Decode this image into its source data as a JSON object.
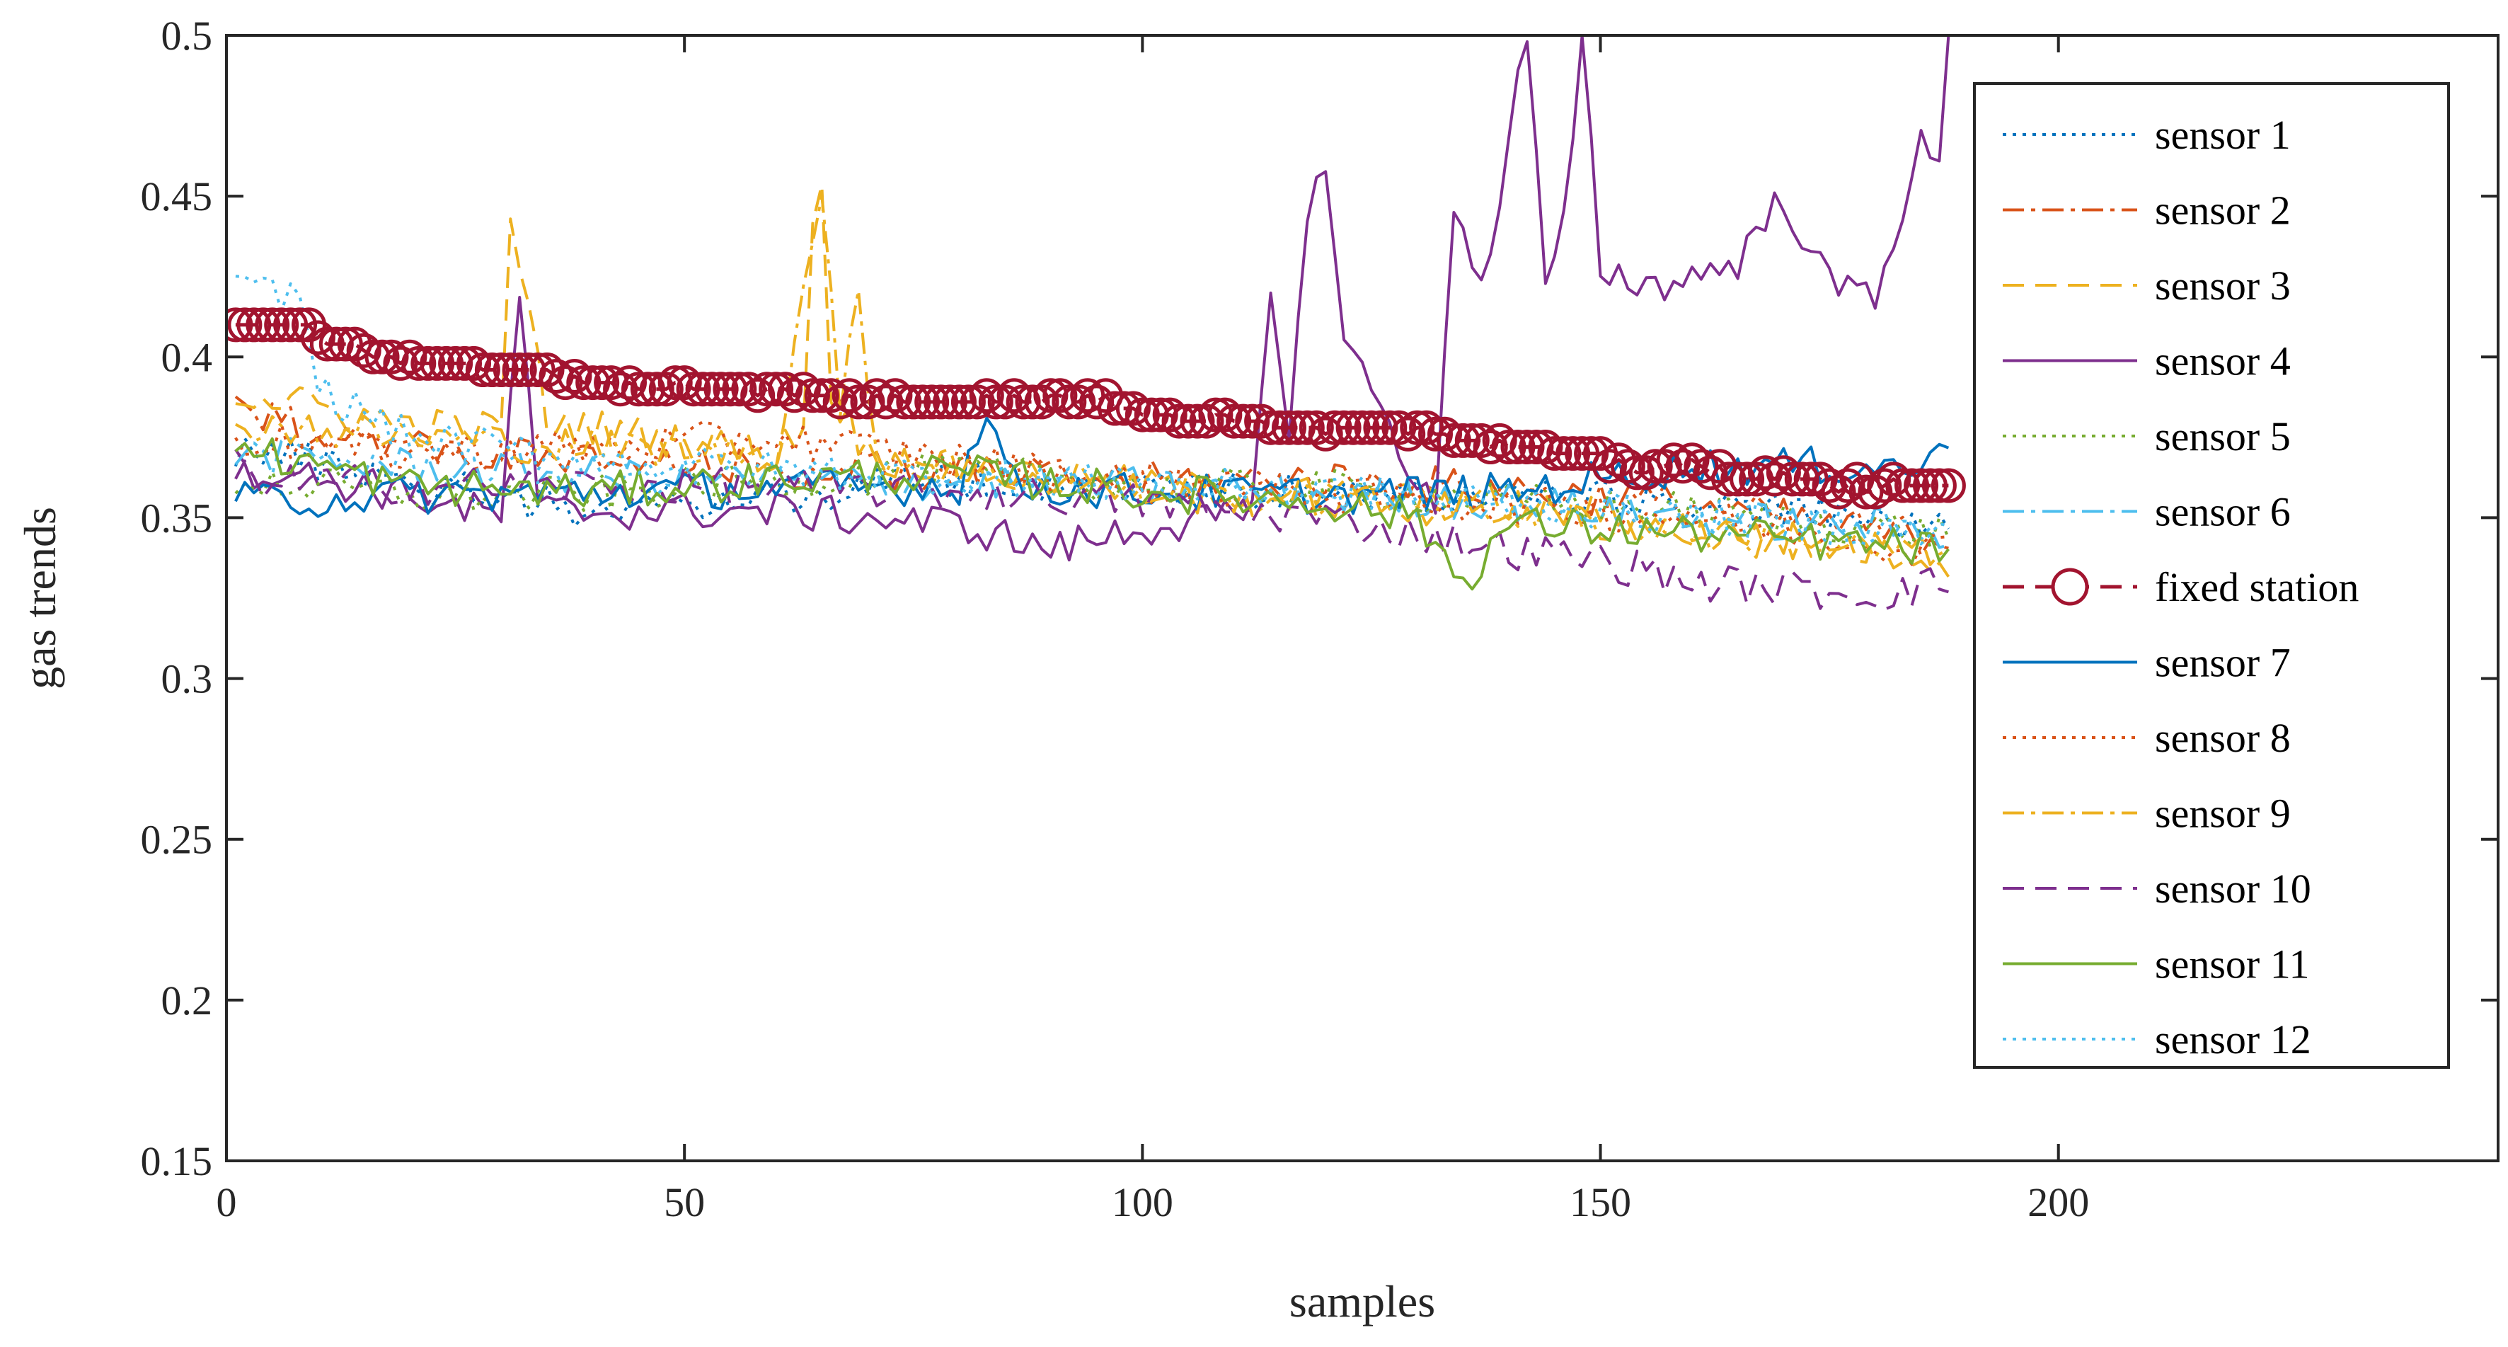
{
  "chart_data": {
    "type": "line",
    "title": "",
    "xlabel": "samples",
    "ylabel": "gas trends",
    "xlim": [
      0,
      248
    ],
    "ylim": [
      0.15,
      0.5
    ],
    "xticks": [
      0,
      50,
      100,
      150,
      200
    ],
    "xtick_labels": [
      "0",
      "50",
      "100",
      "150",
      "200"
    ],
    "yticks": [
      0.15,
      0.2,
      0.25,
      0.3,
      0.35,
      0.4,
      0.45,
      0.5
    ],
    "ytick_labels": [
      "0.15",
      "0.2",
      "0.25",
      "0.3",
      "0.35",
      "0.4",
      "0.45",
      "0.5"
    ],
    "grid": false,
    "legend_position": "top-right",
    "n_samples": 188,
    "series": [
      {
        "name": "sensor 1",
        "color": "#0072BD",
        "dash": "dotted",
        "keypoints": [
          [
            1,
            0.372
          ],
          [
            20,
            0.362
          ],
          [
            40,
            0.352
          ],
          [
            60,
            0.357
          ],
          [
            80,
            0.362
          ],
          [
            100,
            0.36
          ],
          [
            120,
            0.357
          ],
          [
            140,
            0.357
          ],
          [
            160,
            0.354
          ],
          [
            188,
            0.347
          ]
        ]
      },
      {
        "name": "sensor 2",
        "color": "#D95319",
        "dash": "dashdot",
        "keypoints": [
          [
            1,
            0.382
          ],
          [
            20,
            0.372
          ],
          [
            40,
            0.367
          ],
          [
            60,
            0.365
          ],
          [
            80,
            0.364
          ],
          [
            100,
            0.362
          ],
          [
            120,
            0.362
          ],
          [
            140,
            0.359
          ],
          [
            160,
            0.354
          ],
          [
            188,
            0.343
          ]
        ]
      },
      {
        "name": "sensor 3",
        "color": "#EDB120",
        "dash": "dashed",
        "keypoints": [
          [
            1,
            0.389
          ],
          [
            20,
            0.379
          ],
          [
            30,
            0.377
          ],
          [
            31,
            0.443
          ],
          [
            32,
            0.43
          ],
          [
            35,
            0.38
          ],
          [
            50,
            0.374
          ],
          [
            60,
            0.369
          ],
          [
            63,
            0.38
          ],
          [
            64,
            0.442
          ],
          [
            65,
            0.452
          ],
          [
            66,
            0.39
          ],
          [
            70,
            0.37
          ],
          [
            80,
            0.365
          ],
          [
            100,
            0.36
          ],
          [
            120,
            0.357
          ],
          [
            140,
            0.354
          ],
          [
            160,
            0.347
          ],
          [
            188,
            0.337
          ]
        ]
      },
      {
        "name": "sensor 4",
        "color": "#7E2F8E",
        "dash": "solid",
        "keypoints": [
          [
            1,
            0.366
          ],
          [
            10,
            0.362
          ],
          [
            20,
            0.357
          ],
          [
            30,
            0.35
          ],
          [
            32,
            0.42
          ],
          [
            34,
            0.352
          ],
          [
            60,
            0.352
          ],
          [
            80,
            0.348
          ],
          [
            90,
            0.34
          ],
          [
            100,
            0.347
          ],
          [
            112,
            0.35
          ],
          [
            114,
            0.42
          ],
          [
            116,
            0.38
          ],
          [
            118,
            0.44
          ],
          [
            120,
            0.463
          ],
          [
            122,
            0.405
          ],
          [
            125,
            0.39
          ],
          [
            132,
            0.35
          ],
          [
            134,
            0.45
          ],
          [
            136,
            0.43
          ],
          [
            138,
            0.428
          ],
          [
            140,
            0.47
          ],
          [
            142,
            0.5
          ],
          [
            144,
            0.42
          ],
          [
            146,
            0.44
          ],
          [
            148,
            0.5
          ],
          [
            150,
            0.428
          ],
          [
            155,
            0.422
          ],
          [
            160,
            0.425
          ],
          [
            165,
            0.43
          ],
          [
            170,
            0.45
          ],
          [
            175,
            0.422
          ],
          [
            180,
            0.42
          ],
          [
            185,
            0.465
          ],
          [
            187,
            0.46
          ],
          [
            188,
            0.5
          ]
        ]
      },
      {
        "name": "sensor 5",
        "color": "#77AC30",
        "dash": "dotted",
        "keypoints": [
          [
            1,
            0.362
          ],
          [
            20,
            0.357
          ],
          [
            40,
            0.357
          ],
          [
            60,
            0.362
          ],
          [
            80,
            0.364
          ],
          [
            100,
            0.36
          ],
          [
            120,
            0.359
          ],
          [
            140,
            0.355
          ],
          [
            160,
            0.352
          ],
          [
            188,
            0.345
          ]
        ]
      },
      {
        "name": "sensor 6",
        "color": "#4DBEEE",
        "dash": "dashdot",
        "keypoints": [
          [
            1,
            0.37
          ],
          [
            20,
            0.366
          ],
          [
            40,
            0.363
          ],
          [
            60,
            0.362
          ],
          [
            80,
            0.361
          ],
          [
            100,
            0.36
          ],
          [
            120,
            0.357
          ],
          [
            140,
            0.355
          ],
          [
            160,
            0.35
          ],
          [
            188,
            0.346
          ]
        ]
      },
      {
        "name": "fixed station",
        "color": "#A2142F",
        "dash": "dashed",
        "marker": "circle",
        "keypoints": [
          [
            1,
            0.41
          ],
          [
            9,
            0.41
          ],
          [
            10,
            0.405
          ],
          [
            15,
            0.402
          ],
          [
            20,
            0.399
          ],
          [
            30,
            0.397
          ],
          [
            35,
            0.395
          ],
          [
            40,
            0.391
          ],
          [
            60,
            0.39
          ],
          [
            65,
            0.388
          ],
          [
            70,
            0.387
          ],
          [
            80,
            0.387
          ],
          [
            90,
            0.387
          ],
          [
            95,
            0.387
          ],
          [
            100,
            0.382
          ],
          [
            110,
            0.38
          ],
          [
            120,
            0.378
          ],
          [
            130,
            0.378
          ],
          [
            140,
            0.372
          ],
          [
            150,
            0.368
          ],
          [
            155,
            0.365
          ],
          [
            160,
            0.367
          ],
          [
            165,
            0.363
          ],
          [
            170,
            0.363
          ],
          [
            175,
            0.36
          ],
          [
            188,
            0.36
          ]
        ]
      },
      {
        "name": "sensor 7",
        "color": "#0072BD",
        "dash": "solid",
        "keypoints": [
          [
            1,
            0.355
          ],
          [
            20,
            0.357
          ],
          [
            40,
            0.358
          ],
          [
            60,
            0.359
          ],
          [
            80,
            0.36
          ],
          [
            82,
            0.378
          ],
          [
            84,
            0.378
          ],
          [
            86,
            0.36
          ],
          [
            100,
            0.358
          ],
          [
            120,
            0.357
          ],
          [
            140,
            0.358
          ],
          [
            150,
            0.362
          ],
          [
            160,
            0.366
          ],
          [
            180,
            0.366
          ],
          [
            186,
            0.366
          ],
          [
            188,
            0.375
          ]
        ]
      },
      {
        "name": "sensor 8",
        "color": "#D95319",
        "dash": "dotted",
        "keypoints": [
          [
            1,
            0.375
          ],
          [
            20,
            0.37
          ],
          [
            40,
            0.372
          ],
          [
            60,
            0.375
          ],
          [
            80,
            0.368
          ],
          [
            100,
            0.36
          ],
          [
            120,
            0.357
          ],
          [
            140,
            0.354
          ],
          [
            160,
            0.35
          ],
          [
            188,
            0.34
          ]
        ]
      },
      {
        "name": "sensor 9",
        "color": "#EDB120",
        "dash": "dashdot",
        "keypoints": [
          [
            1,
            0.38
          ],
          [
            20,
            0.375
          ],
          [
            40,
            0.372
          ],
          [
            60,
            0.37
          ],
          [
            63,
            0.42
          ],
          [
            65,
            0.455
          ],
          [
            67,
            0.38
          ],
          [
            69,
            0.42
          ],
          [
            71,
            0.37
          ],
          [
            80,
            0.365
          ],
          [
            100,
            0.358
          ],
          [
            120,
            0.355
          ],
          [
            140,
            0.352
          ],
          [
            160,
            0.345
          ],
          [
            188,
            0.338
          ]
        ]
      },
      {
        "name": "sensor 10",
        "color": "#7E2F8E",
        "dash": "dashed",
        "keypoints": [
          [
            1,
            0.362
          ],
          [
            20,
            0.36
          ],
          [
            40,
            0.36
          ],
          [
            60,
            0.36
          ],
          [
            80,
            0.358
          ],
          [
            100,
            0.355
          ],
          [
            120,
            0.35
          ],
          [
            130,
            0.345
          ],
          [
            140,
            0.34
          ],
          [
            150,
            0.337
          ],
          [
            160,
            0.33
          ],
          [
            170,
            0.328
          ],
          [
            180,
            0.326
          ],
          [
            188,
            0.33
          ]
        ]
      },
      {
        "name": "sensor 11",
        "color": "#77AC30",
        "dash": "solid",
        "keypoints": [
          [
            1,
            0.372
          ],
          [
            20,
            0.36
          ],
          [
            40,
            0.358
          ],
          [
            60,
            0.362
          ],
          [
            80,
            0.364
          ],
          [
            100,
            0.358
          ],
          [
            120,
            0.355
          ],
          [
            130,
            0.35
          ],
          [
            135,
            0.33
          ],
          [
            140,
            0.348
          ],
          [
            160,
            0.345
          ],
          [
            188,
            0.34
          ]
        ]
      },
      {
        "name": "sensor 12",
        "color": "#4DBEEE",
        "dash": "dotted",
        "keypoints": [
          [
            1,
            0.42
          ],
          [
            8,
            0.42
          ],
          [
            10,
            0.39
          ],
          [
            20,
            0.375
          ],
          [
            40,
            0.368
          ],
          [
            60,
            0.365
          ],
          [
            80,
            0.363
          ],
          [
            100,
            0.36
          ],
          [
            120,
            0.358
          ],
          [
            140,
            0.355
          ],
          [
            160,
            0.35
          ],
          [
            188,
            0.345
          ]
        ]
      }
    ]
  }
}
